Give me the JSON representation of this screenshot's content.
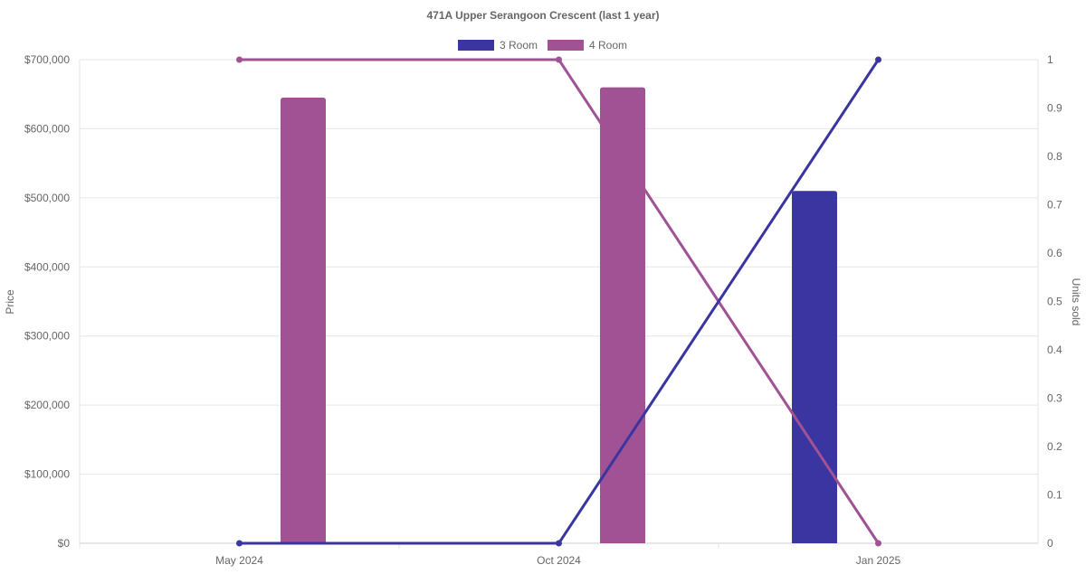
{
  "chart_data": {
    "type": "bar",
    "title": "471A Upper Serangoon Crescent (last 1 year)",
    "categories": [
      "May 2024",
      "Oct 2024",
      "Jan 2025"
    ],
    "ylabel": "Price",
    "y2label": "Units sold",
    "ylim": [
      0,
      700000
    ],
    "y2lim": [
      0,
      1
    ],
    "yticks": [
      "$0",
      "$100,000",
      "$200,000",
      "$300,000",
      "$400,000",
      "$500,000",
      "$600,000",
      "$700,000"
    ],
    "y2ticks": [
      "0",
      "0.1",
      "0.2",
      "0.3",
      "0.4",
      "0.5",
      "0.6",
      "0.7",
      "0.8",
      "0.9",
      "1"
    ],
    "grid": true,
    "legend_position": "top",
    "series": [
      {
        "name": "3 Room",
        "color": "#3a35a0",
        "price": [
          null,
          null,
          510000
        ],
        "units_sold": [
          0,
          0,
          1
        ]
      },
      {
        "name": "4 Room",
        "color": "#a05294",
        "price": [
          645000,
          660000,
          null
        ],
        "units_sold": [
          1,
          1,
          0
        ]
      }
    ]
  }
}
